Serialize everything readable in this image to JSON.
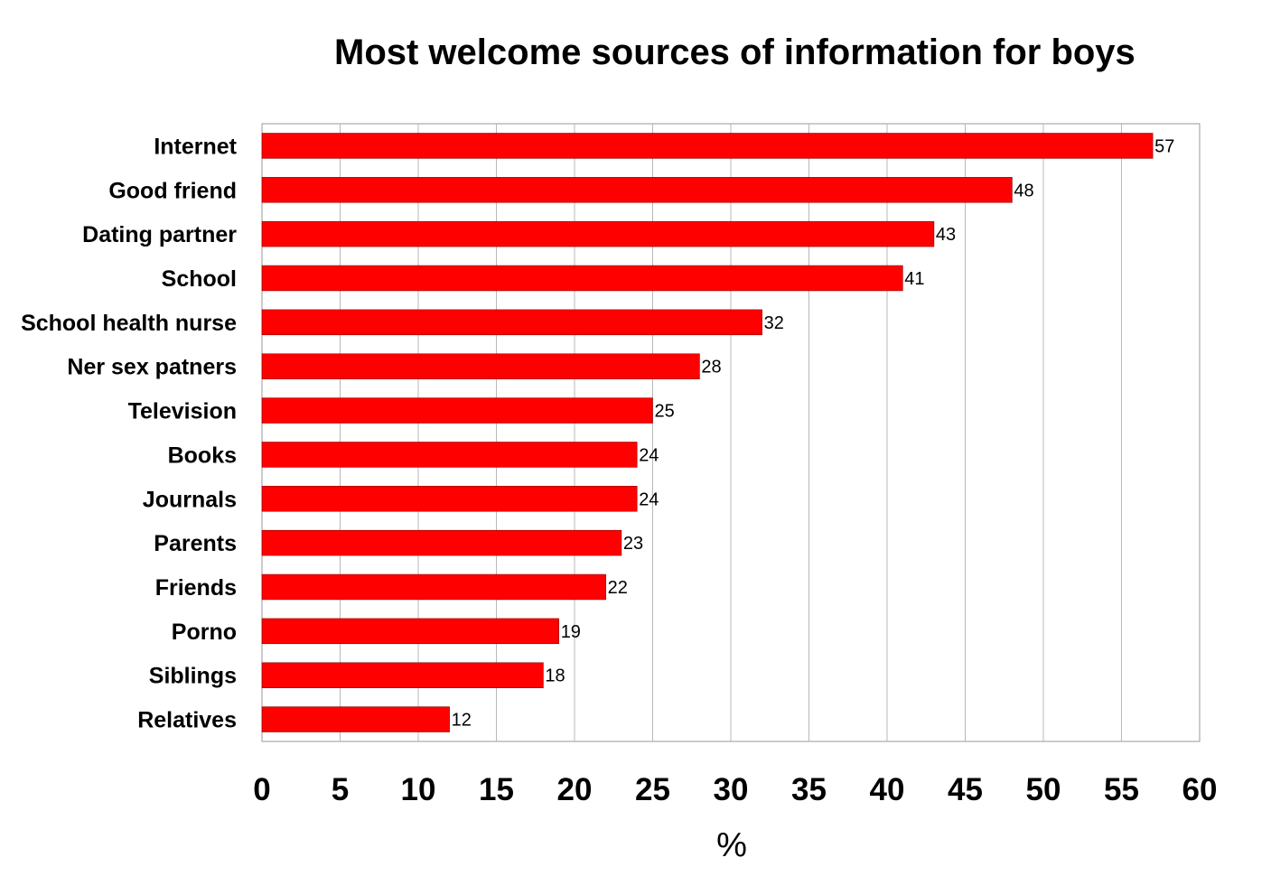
{
  "chart_data": {
    "type": "bar",
    "orientation": "horizontal",
    "title": "Most welcome sources of information for boys",
    "xlabel": "%",
    "ylabel": "",
    "xlim": [
      0,
      60
    ],
    "ticks": [
      "0",
      "5",
      "10",
      "15",
      "20",
      "25",
      "30",
      "35",
      "40",
      "45",
      "50",
      "55",
      "60"
    ],
    "categories": [
      "Internet",
      "Good friend",
      "Dating partner",
      "School",
      "School health nurse",
      "Ner sex patners",
      "Television",
      "Books",
      "Journals",
      "Parents",
      "Friends",
      "Porno",
      "Siblings",
      "Relatives"
    ],
    "values": [
      57,
      48,
      43,
      41,
      32,
      28,
      25,
      24,
      24,
      23,
      22,
      19,
      18,
      12
    ],
    "value_labels": [
      "57",
      "48",
      "43",
      "41",
      "32",
      "28",
      "25",
      "24",
      "24",
      "23",
      "22",
      "19",
      "18",
      "12"
    ],
    "bar_color": "#ff0000",
    "grid": "vertical",
    "legend": "none"
  }
}
